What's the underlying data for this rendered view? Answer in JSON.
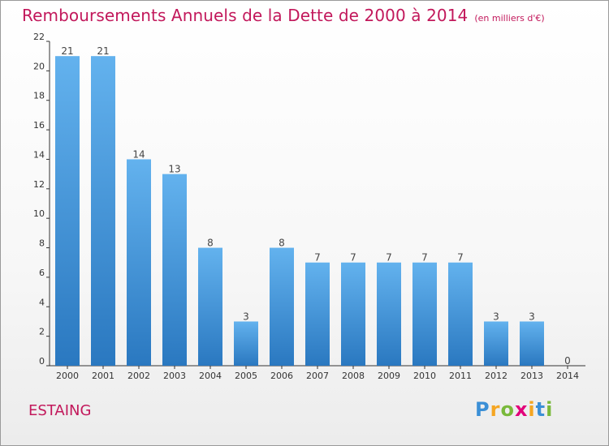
{
  "header": {
    "title": "Remboursements Annuels de la Dette de 2000 à 2014",
    "subtitle": "(en milliers d'€)"
  },
  "footer": {
    "commune": "ESTAING",
    "logo_text": "Proxiti"
  },
  "colors": {
    "title": "#c2185b",
    "bar_top": "#63b2ee",
    "bar_bottom": "#2a78c0",
    "axis": "#333333"
  },
  "chart_data": {
    "type": "bar",
    "title": "Remboursements Annuels de la Dette de 2000 à 2014",
    "subtitle": "(en milliers d'€)",
    "xlabel": "",
    "ylabel": "",
    "categories": [
      "2000",
      "2001",
      "2002",
      "2003",
      "2004",
      "2005",
      "2006",
      "2007",
      "2008",
      "2009",
      "2010",
      "2011",
      "2012",
      "2013",
      "2014"
    ],
    "values": [
      21,
      21,
      14,
      13,
      8,
      3,
      8,
      7,
      7,
      7,
      7,
      7,
      3,
      3,
      0
    ],
    "ylim": [
      0,
      22
    ],
    "yticks": [
      0,
      2,
      4,
      6,
      8,
      10,
      12,
      14,
      16,
      18,
      20,
      22
    ],
    "grid": false,
    "legend": "none"
  }
}
